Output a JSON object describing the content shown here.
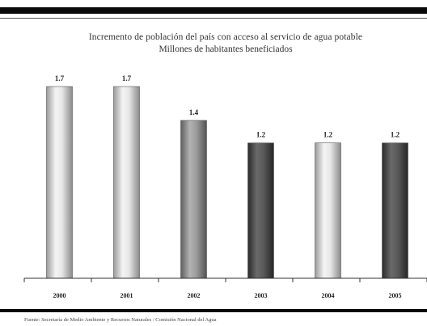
{
  "chart_data": {
    "type": "bar",
    "title": "Incremento de población del país con acceso al servicio de agua potable",
    "subtitle": "Millones de habitantes beneficiados",
    "categories": [
      "2000",
      "2001",
      "2002",
      "2003",
      "2004",
      "2005"
    ],
    "values": [
      1.7,
      1.7,
      1.4,
      1.2,
      1.2,
      1.2
    ],
    "value_labels": [
      "1.7",
      "1.7",
      "1.4",
      "1.2",
      "1.2",
      "1.2"
    ],
    "ylim": [
      0,
      1.75
    ],
    "grid": false,
    "bar_colors": [
      "#d9d9d9",
      "#d9d9d9",
      "#8e8e8e",
      "#4a4a4a",
      "#d9d9d9",
      "#4a4a4a"
    ]
  },
  "source": "Fuente: Secretaría de Medio Ambiente y Recursos Naturales / Comisión Nacional del Agua"
}
